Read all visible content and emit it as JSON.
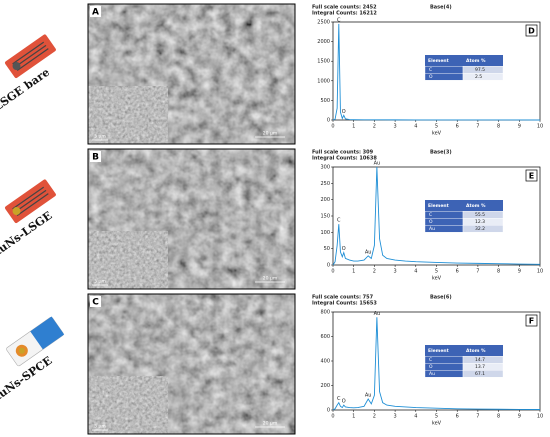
{
  "rows": [
    {
      "label": "LSGE bare",
      "panel": "A",
      "scale_main": "20 µm",
      "scale_inset": "5 µm"
    },
    {
      "label": "AuNs-LSGE",
      "panel": "B",
      "scale_main": "20 µm",
      "scale_inset": "5 µm"
    },
    {
      "label": "AuNs-SPCE",
      "panel": "C",
      "scale_main": "20 µm",
      "scale_inset": "5 µm"
    }
  ],
  "chart_data": [
    {
      "type": "line",
      "panel": "D",
      "header_left": [
        "Full scale counts: 2452",
        "Integral Counts: 16212"
      ],
      "header_right": "Base(4)",
      "xlabel": "keV",
      "color": "#1f8fd6",
      "x": [
        0,
        0.1,
        0.2,
        0.28,
        0.36,
        0.45,
        0.52,
        0.6,
        0.8,
        1,
        1.5,
        2,
        3,
        4,
        5,
        6,
        7,
        8,
        9,
        10
      ],
      "values": [
        0,
        20,
        300,
        2452,
        200,
        40,
        120,
        30,
        10,
        8,
        5,
        5,
        3,
        2,
        2,
        1,
        1,
        1,
        1,
        0
      ],
      "xlim": [
        0,
        10
      ],
      "xticks": [
        0,
        1,
        2,
        3,
        4,
        5,
        6,
        7,
        8,
        9,
        10
      ],
      "ylim": [
        0,
        2500
      ],
      "yticks": [
        0,
        500,
        1000,
        1500,
        2000,
        2500
      ],
      "peak_labels": [
        {
          "text": "C",
          "x": 0.28,
          "y": 2452
        },
        {
          "text": "O",
          "x": 0.52,
          "y": 120
        }
      ],
      "table": {
        "header": [
          "Element",
          "Atom %"
        ],
        "rows": [
          [
            "C",
            "97.5"
          ],
          [
            "O",
            "2.5"
          ]
        ]
      }
    },
    {
      "type": "line",
      "panel": "E",
      "header_left": [
        "Full scale counts: 309",
        "Integral Counts: 10638"
      ],
      "header_right": "Base(3)",
      "xlabel": "keV",
      "color": "#1f8fd6",
      "x": [
        0,
        0.1,
        0.2,
        0.28,
        0.36,
        0.45,
        0.52,
        0.6,
        0.8,
        1,
        1.2,
        1.5,
        1.7,
        1.85,
        2,
        2.12,
        2.25,
        2.4,
        2.6,
        3,
        3.5,
        4,
        5,
        6,
        7,
        8,
        9,
        10
      ],
      "values": [
        0,
        10,
        60,
        125,
        40,
        25,
        38,
        20,
        15,
        12,
        12,
        15,
        28,
        20,
        60,
        300,
        80,
        30,
        20,
        15,
        12,
        10,
        8,
        6,
        5,
        4,
        3,
        2
      ],
      "xlim": [
        0,
        10
      ],
      "xticks": [
        0,
        1,
        2,
        3,
        4,
        5,
        6,
        7,
        8,
        9,
        10
      ],
      "ylim": [
        0,
        300
      ],
      "yticks": [
        0,
        50,
        100,
        150,
        200,
        250,
        300
      ],
      "peak_labels": [
        {
          "text": "C",
          "x": 0.28,
          "y": 125
        },
        {
          "text": "O",
          "x": 0.52,
          "y": 38
        },
        {
          "text": "Au",
          "x": 1.7,
          "y": 28
        },
        {
          "text": "Au",
          "x": 2.12,
          "y": 300
        }
      ],
      "table": {
        "header": [
          "Element",
          "Atom %"
        ],
        "rows": [
          [
            "C",
            "55.5"
          ],
          [
            "O",
            "12.3"
          ],
          [
            "Au",
            "32.2"
          ]
        ]
      }
    },
    {
      "type": "line",
      "panel": "F",
      "header_left": [
        "Full scale counts: 757",
        "Integral Counts: 15653"
      ],
      "header_right": "Base(6)",
      "xlabel": "keV",
      "color": "#1f8fd6",
      "x": [
        0,
        0.1,
        0.2,
        0.28,
        0.36,
        0.45,
        0.52,
        0.6,
        0.8,
        1,
        1.2,
        1.5,
        1.7,
        1.85,
        2,
        2.12,
        2.25,
        2.4,
        2.6,
        3,
        3.5,
        4,
        5,
        6,
        7,
        8,
        9,
        10
      ],
      "values": [
        0,
        10,
        40,
        60,
        30,
        20,
        40,
        25,
        20,
        18,
        20,
        30,
        90,
        50,
        120,
        757,
        150,
        60,
        40,
        30,
        25,
        20,
        15,
        10,
        8,
        6,
        5,
        4
      ],
      "xlim": [
        0,
        10
      ],
      "xticks": [
        0,
        1,
        2,
        3,
        4,
        5,
        6,
        7,
        8,
        9,
        10
      ],
      "ylim": [
        0,
        800
      ],
      "yticks": [
        0,
        200,
        400,
        600,
        800
      ],
      "peak_labels": [
        {
          "text": "C",
          "x": 0.28,
          "y": 60
        },
        {
          "text": "O",
          "x": 0.52,
          "y": 40
        },
        {
          "text": "Au",
          "x": 1.7,
          "y": 90
        },
        {
          "text": "Au",
          "x": 2.12,
          "y": 757
        }
      ],
      "table": {
        "header": [
          "Element",
          "Atom %"
        ],
        "rows": [
          [
            "C",
            "14.7"
          ],
          [
            "O",
            "13.7"
          ],
          [
            "Au",
            "67.1"
          ]
        ]
      }
    }
  ]
}
